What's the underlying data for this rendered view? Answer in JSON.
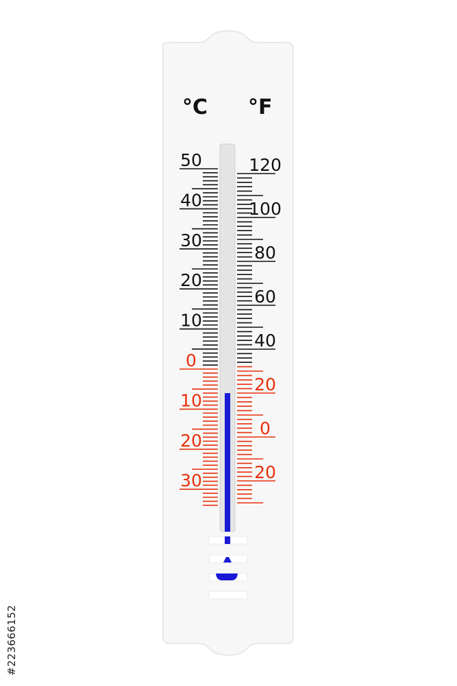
{
  "thermometer": {
    "celsius_unit": "°C",
    "fahrenheit_unit": "°F",
    "celsius_labels": [
      "50",
      "40",
      "30",
      "20",
      "10",
      "0",
      "10",
      "20",
      "30"
    ],
    "celsius_values": [
      50,
      40,
      30,
      20,
      10,
      0,
      -10,
      -20,
      -30
    ],
    "fahrenheit_labels": [
      "120",
      "100",
      "80",
      "60",
      "40",
      "20",
      "0",
      "20"
    ],
    "fahrenheit_values": [
      120,
      100,
      80,
      60,
      40,
      20,
      0,
      -20
    ],
    "reading_celsius": -6,
    "colors": {
      "positive": "#111111",
      "negative": "#e8300c",
      "mercury": "#1a1ad6",
      "board": "#f7f7f7"
    }
  },
  "watermark": {
    "id": "#223666152"
  }
}
